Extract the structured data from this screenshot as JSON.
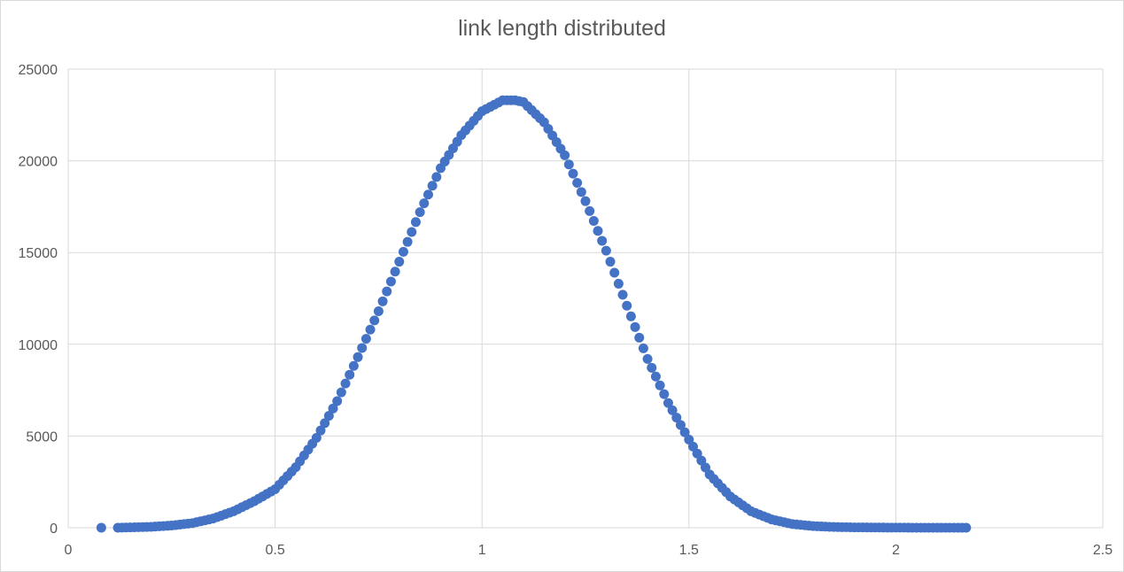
{
  "chart_data": {
    "type": "scatter",
    "title": "link length distributed",
    "xlabel": "",
    "ylabel": "",
    "xlim": [
      0,
      2.5
    ],
    "ylim": [
      0,
      25000
    ],
    "x_ticks": [
      0,
      0.5,
      1,
      1.5,
      2,
      2.5
    ],
    "x_tick_labels": [
      "0",
      "0.5",
      "1",
      "1.5",
      "2",
      "2.5"
    ],
    "y_ticks": [
      0,
      5000,
      10000,
      15000,
      20000,
      25000
    ],
    "y_tick_labels": [
      "0",
      "5000",
      "10000",
      "15000",
      "20000",
      "25000"
    ],
    "grid": true,
    "legend": "none",
    "marker_color": "#4472C4",
    "series": [
      {
        "x": [
          0.08,
          0.12,
          0.15,
          0.2,
          0.25,
          0.3,
          0.35,
          0.4,
          0.45,
          0.5,
          0.55,
          0.6,
          0.65,
          0.7,
          0.75,
          0.8,
          0.85,
          0.9,
          0.95,
          1.0,
          1.05,
          1.08,
          1.1,
          1.15,
          1.2,
          1.25,
          1.3,
          1.35,
          1.4,
          1.45,
          1.5,
          1.55,
          1.6,
          1.65,
          1.7,
          1.75,
          1.8,
          1.85,
          1.9,
          2.0,
          2.1,
          2.17
        ],
        "y": [
          0,
          0,
          20,
          50,
          120,
          250,
          500,
          900,
          1450,
          2100,
          3300,
          4900,
          6900,
          9300,
          11800,
          14500,
          17200,
          19600,
          21400,
          22700,
          23300,
          23300,
          23200,
          22100,
          20300,
          17800,
          15100,
          12100,
          9200,
          6800,
          4800,
          2900,
          1700,
          900,
          450,
          200,
          90,
          40,
          20,
          5,
          0,
          0
        ]
      }
    ]
  }
}
